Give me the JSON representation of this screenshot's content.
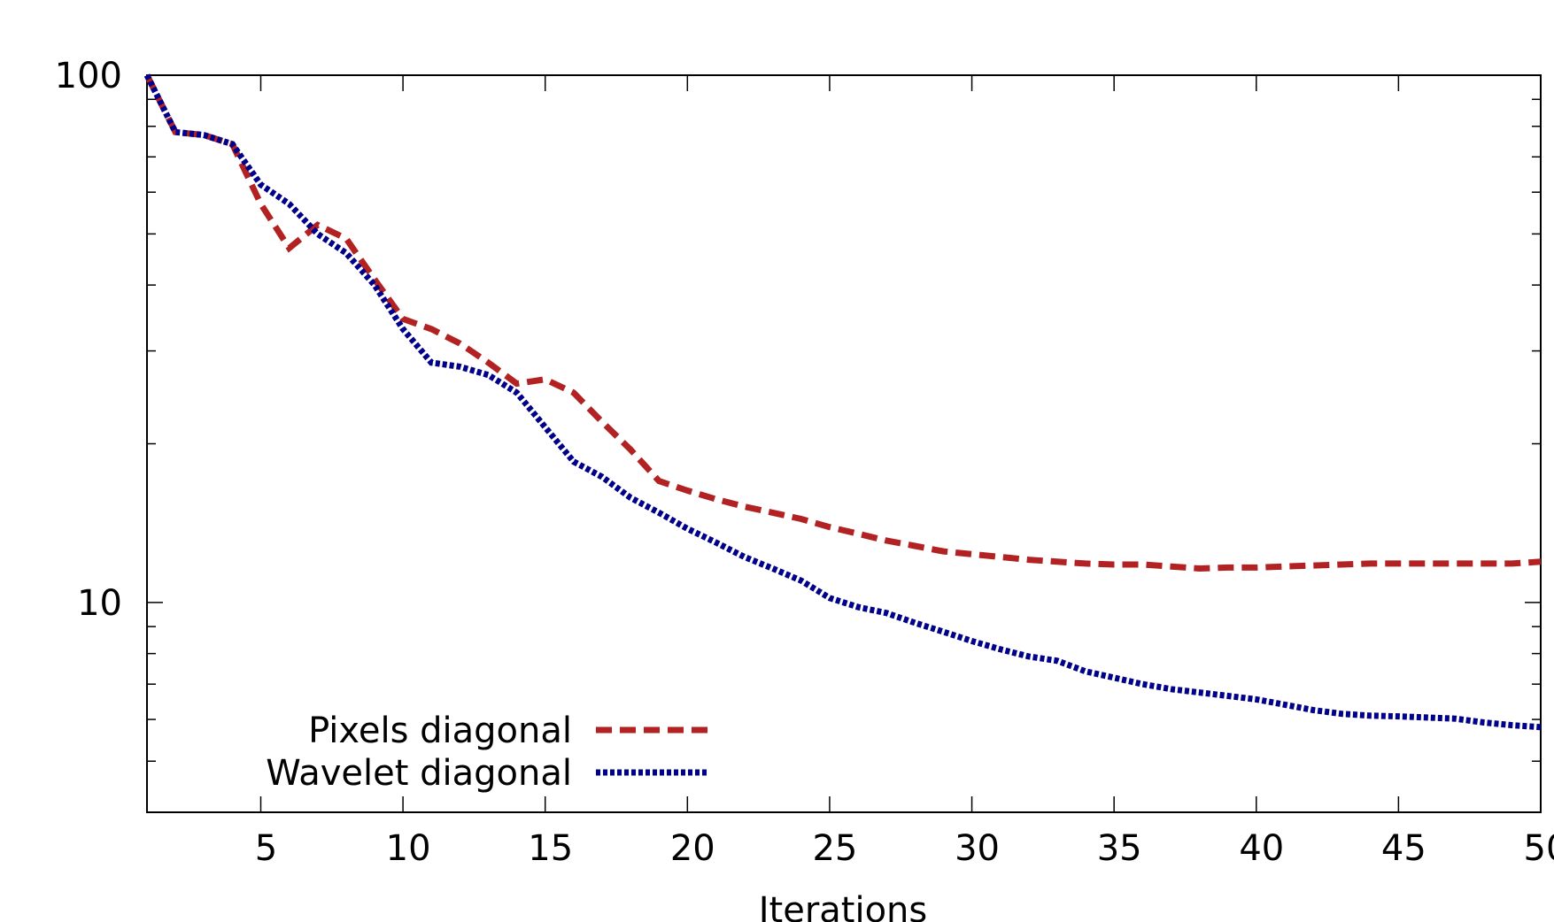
{
  "colors": {
    "pixels": "#b22222",
    "wavelet": "#00008b",
    "axis": "#000000"
  },
  "chart_data": {
    "type": "line",
    "title": "",
    "xlabel": "Iterations",
    "ylabel": "",
    "xlim": [
      1,
      50
    ],
    "ylim": [
      4,
      100
    ],
    "yscale": "log",
    "grid": false,
    "legend_position": "bottom-left",
    "x_ticks": [
      5,
      10,
      15,
      20,
      25,
      30,
      35,
      40,
      45,
      50
    ],
    "x_tick_labels": [
      "5",
      "10",
      "15",
      "20",
      "25",
      "30",
      "35",
      "40",
      "45",
      "50"
    ],
    "y_ticks": [
      10,
      100
    ],
    "y_tick_labels": [
      "10",
      "100"
    ],
    "x": [
      1,
      2,
      3,
      4,
      5,
      6,
      7,
      8,
      9,
      10,
      11,
      12,
      13,
      14,
      15,
      16,
      17,
      18,
      19,
      20,
      21,
      22,
      23,
      24,
      25,
      26,
      27,
      28,
      29,
      30,
      31,
      32,
      33,
      34,
      35,
      36,
      37,
      38,
      39,
      40,
      41,
      42,
      43,
      44,
      45,
      46,
      47,
      48,
      49,
      50
    ],
    "series": [
      {
        "name": "Pixels diagonal",
        "style": "dashed",
        "color": "#b22222",
        "values": [
          100,
          78,
          77,
          74,
          57,
          47,
          52,
          49,
          41,
          34.5,
          33,
          31,
          28.5,
          26,
          26.5,
          25,
          22,
          19.5,
          17,
          16.3,
          15.7,
          15.2,
          14.8,
          14.4,
          13.9,
          13.5,
          13.1,
          12.8,
          12.5,
          12.35,
          12.2,
          12.05,
          11.95,
          11.85,
          11.8,
          11.8,
          11.7,
          11.6,
          11.65,
          11.65,
          11.7,
          11.75,
          11.8,
          11.85,
          11.85,
          11.85,
          11.85,
          11.85,
          11.85,
          11.95
        ]
      },
      {
        "name": "Wavelet diagonal",
        "style": "dotted",
        "color": "#00008b",
        "values": [
          100,
          78,
          77,
          74,
          62,
          57,
          50,
          46,
          40,
          33,
          28.5,
          28,
          27,
          25,
          21.5,
          18.5,
          17.3,
          15.8,
          14.8,
          13.8,
          13,
          12.2,
          11.6,
          11,
          10.2,
          9.8,
          9.55,
          9.15,
          8.8,
          8.45,
          8.15,
          7.9,
          7.75,
          7.4,
          7.2,
          7,
          6.85,
          6.75,
          6.65,
          6.55,
          6.4,
          6.25,
          6.15,
          6.1,
          6.08,
          6.05,
          6.02,
          5.92,
          5.85,
          5.8
        ]
      }
    ]
  }
}
